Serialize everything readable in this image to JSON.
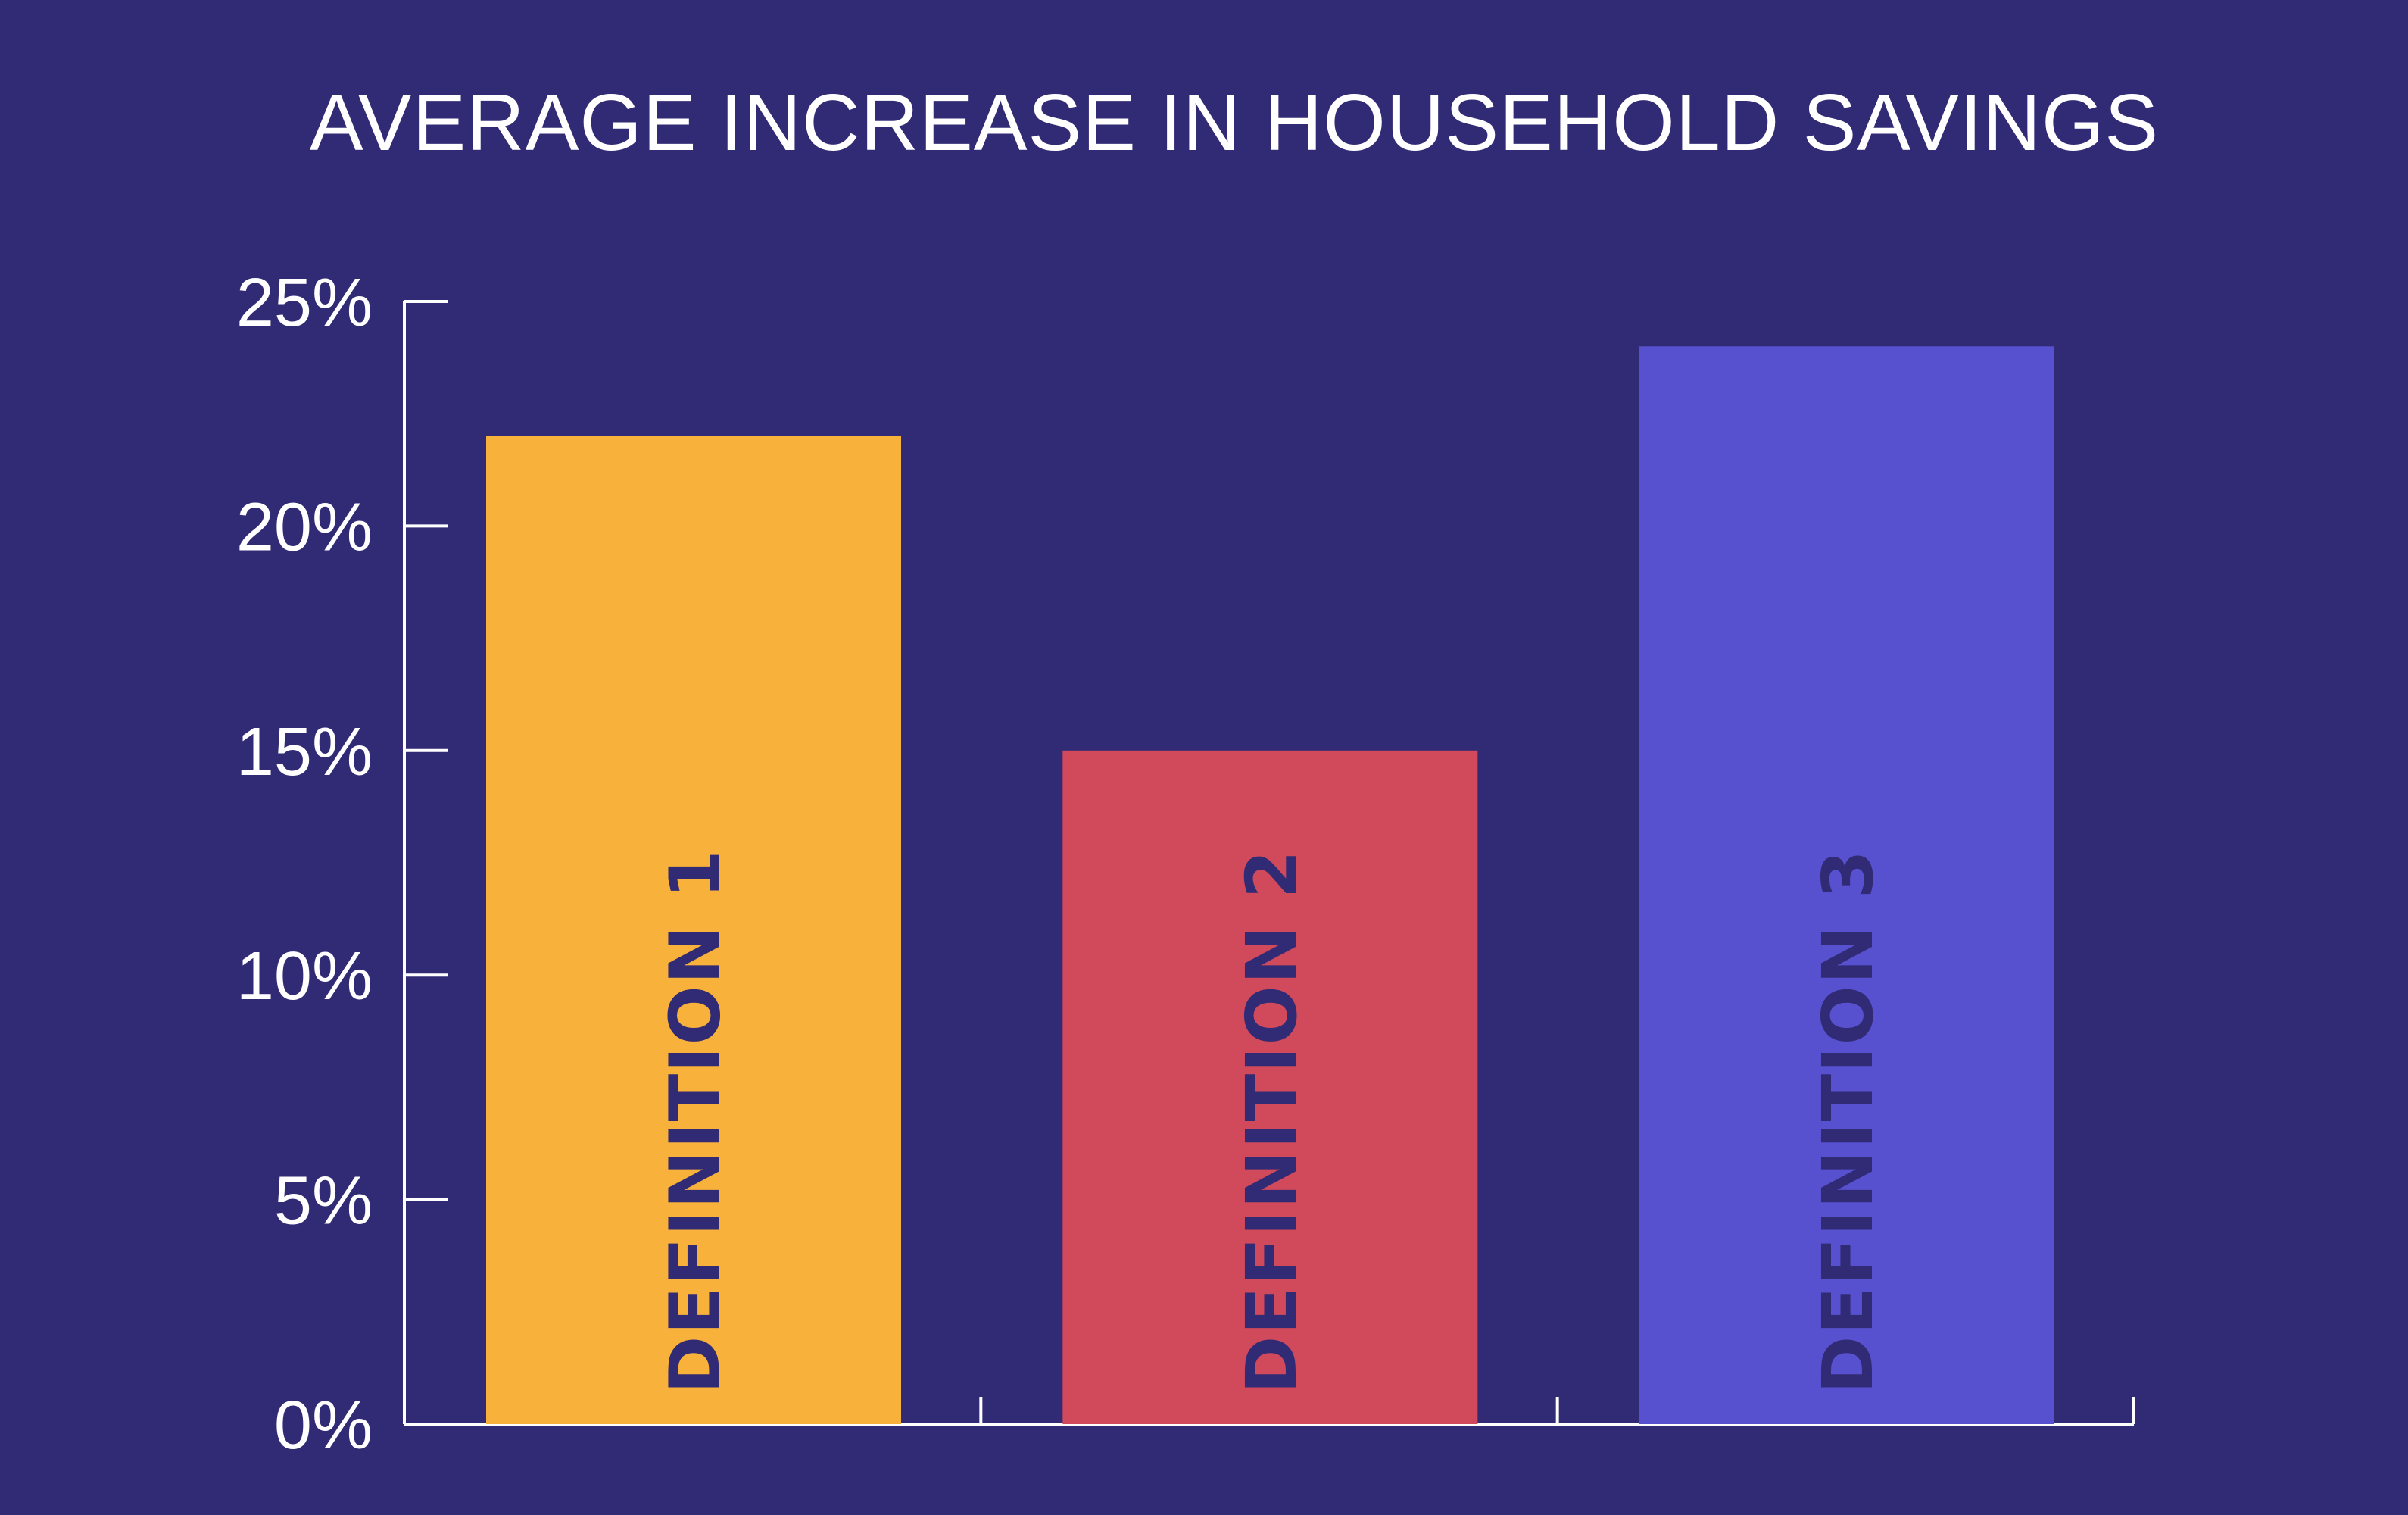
{
  "chart_data": {
    "type": "bar",
    "title": "AVERAGE INCREASE IN HOUSEHOLD SAVINGS",
    "categories": [
      "DEFINITION 1",
      "DEFINITION 2",
      "DEFINITION 3"
    ],
    "values": [
      22,
      15,
      24
    ],
    "colors": [
      "#f8b13a",
      "#d14a5c",
      "#5851cf"
    ],
    "ylim": [
      0,
      25
    ],
    "yticks": [
      0,
      5,
      10,
      15,
      20,
      25
    ],
    "ytick_labels": [
      "0%",
      "5%",
      "10%",
      "15%",
      "20%",
      "25%"
    ],
    "xlabel": "",
    "ylabel": "",
    "grid": false,
    "legend": false
  },
  "colors": {
    "background": "#312a74",
    "axis": "#ffffff",
    "bar_text": "#312a74"
  }
}
